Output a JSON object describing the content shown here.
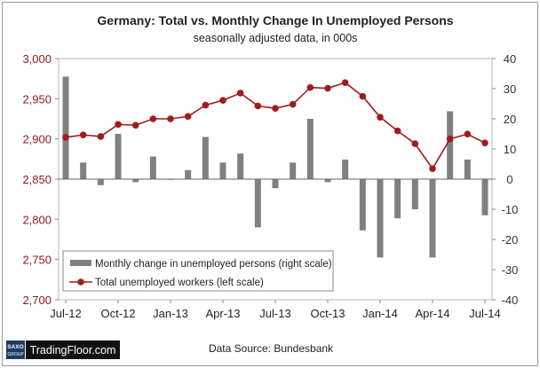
{
  "chart_data": {
    "type": "bar+line",
    "title": "Germany: Total vs. Monthly Change In Unemployed Persons",
    "subtitle": "seasonally adjusted data, in 000s",
    "source": "Data Source: Bundesbank",
    "left_axis": {
      "range": [
        2700,
        3000
      ],
      "ticks": [
        "2,700",
        "2,750",
        "2,800",
        "2,850",
        "2,900",
        "2,950",
        "3,000"
      ],
      "color": "#8b1a1a"
    },
    "right_axis": {
      "range": [
        -40,
        40
      ],
      "ticks": [
        "-40",
        "-30",
        "-20",
        "-10",
        "0",
        "10",
        "20",
        "30",
        "40"
      ],
      "color": "#333333"
    },
    "x_tick_labels": [
      "Jul-12",
      "Oct-12",
      "Jan-13",
      "Apr-13",
      "Jul-13",
      "Oct-13",
      "Jan-14",
      "Apr-14",
      "Jul-14"
    ],
    "categories": [
      "Jul-12",
      "Aug-12",
      "Sep-12",
      "Oct-12",
      "Nov-12",
      "Dec-12",
      "Jan-13",
      "Feb-13",
      "Mar-13",
      "Apr-13",
      "May-13",
      "Jun-13",
      "Jul-13",
      "Aug-13",
      "Sep-13",
      "Oct-13",
      "Nov-13",
      "Dec-13",
      "Jan-14",
      "Feb-14",
      "Mar-14",
      "Apr-14",
      "May-14",
      "Jun-14",
      "Jul-14"
    ],
    "series": [
      {
        "name": "Monthly change in unemployed persons (right scale)",
        "type": "bar",
        "axis": "right",
        "color": "#808080",
        "values": [
          34,
          5.5,
          -2,
          15,
          -1,
          7.5,
          0,
          3,
          14,
          5.5,
          8.5,
          -16,
          -3,
          5.5,
          20,
          -1,
          6.5,
          -17,
          -26,
          -13,
          -10,
          -26,
          22.5,
          6.5,
          -12
        ]
      },
      {
        "name": "Total unemployed workers (left scale)",
        "type": "line",
        "axis": "left",
        "color": "#a01c1c",
        "values": [
          2902,
          2905,
          2903,
          2918,
          2917,
          2925,
          2925,
          2928,
          2942,
          2948,
          2957,
          2941,
          2938,
          2943,
          2964,
          2963,
          2970,
          2953,
          2927,
          2910,
          2894,
          2863,
          2900,
          2906,
          2895
        ]
      }
    ],
    "legend_position": "bottom-left"
  },
  "branding": {
    "logo_top": "SAXO",
    "logo_bottom": "GROUP",
    "name": "TradingFloor.com"
  }
}
